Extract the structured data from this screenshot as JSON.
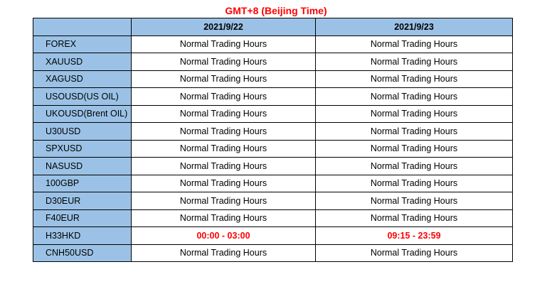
{
  "title": "GMT+8 (Beijing Time)",
  "columns": [
    "",
    "2021/9/22",
    "2021/9/23"
  ],
  "rows": [
    {
      "symbol": "FOREX",
      "d1": "Normal Trading Hours",
      "d2": "Normal Trading Hours",
      "highlight": false
    },
    {
      "symbol": "XAUUSD",
      "d1": "Normal Trading Hours",
      "d2": "Normal Trading Hours",
      "highlight": false
    },
    {
      "symbol": "XAGUSD",
      "d1": "Normal Trading Hours",
      "d2": "Normal Trading Hours",
      "highlight": false
    },
    {
      "symbol": "USOUSD(US OIL)",
      "d1": "Normal Trading Hours",
      "d2": "Normal Trading Hours",
      "highlight": false
    },
    {
      "symbol": "UKOUSD(Brent OIL)",
      "d1": "Normal Trading Hours",
      "d2": "Normal Trading Hours",
      "highlight": false
    },
    {
      "symbol": "U30USD",
      "d1": "Normal Trading Hours",
      "d2": "Normal Trading Hours",
      "highlight": false
    },
    {
      "symbol": "SPXUSD",
      "d1": "Normal Trading Hours",
      "d2": "Normal Trading Hours",
      "highlight": false
    },
    {
      "symbol": "NASUSD",
      "d1": "Normal Trading Hours",
      "d2": "Normal Trading Hours",
      "highlight": false
    },
    {
      "symbol": "100GBP",
      "d1": "Normal Trading Hours",
      "d2": "Normal Trading Hours",
      "highlight": false
    },
    {
      "symbol": "D30EUR",
      "d1": "Normal Trading Hours",
      "d2": "Normal Trading Hours",
      "highlight": false
    },
    {
      "symbol": "F40EUR",
      "d1": "Normal Trading Hours",
      "d2": "Normal Trading Hours",
      "highlight": false
    },
    {
      "symbol": "H33HKD",
      "d1": "00:00 - 03:00",
      "d2": "09:15 - 23:59",
      "highlight": true
    },
    {
      "symbol": "CNH50USD",
      "d1": "Normal Trading Hours",
      "d2": "Normal Trading Hours",
      "highlight": false
    }
  ],
  "colors": {
    "header_bg": "#9bc2e6",
    "title": "#ff0000",
    "highlight_text": "#ff0000",
    "border": "#000000"
  }
}
